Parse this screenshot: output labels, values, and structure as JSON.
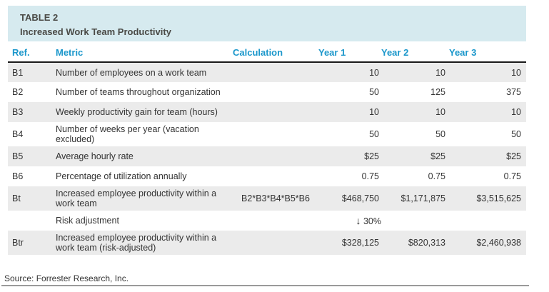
{
  "table": {
    "label": "TABLE 2",
    "title": "Increased Work Team Productivity",
    "columns": {
      "ref": "Ref.",
      "metric": "Metric",
      "calc": "Calculation",
      "y1": "Year 1",
      "y2": "Year 2",
      "y3": "Year 3"
    },
    "rows": [
      {
        "ref": "B1",
        "metric": "Number of employees on a work team",
        "calc": "",
        "y1": "10",
        "y2": "10",
        "y3": "10"
      },
      {
        "ref": "B2",
        "metric": "Number of teams throughout organization",
        "calc": "",
        "y1": "50",
        "y2": "125",
        "y3": "375"
      },
      {
        "ref": "B3",
        "metric": "Weekly productivity gain for team (hours)",
        "calc": "",
        "y1": "10",
        "y2": "10",
        "y3": "10"
      },
      {
        "ref": "B4",
        "metric": "Number of weeks per year (vacation excluded)",
        "calc": "",
        "y1": "50",
        "y2": "50",
        "y3": "50"
      },
      {
        "ref": "B5",
        "metric": "Average hourly rate",
        "calc": "",
        "y1": "$25",
        "y2": "$25",
        "y3": "$25"
      },
      {
        "ref": "B6",
        "metric": "Percentage of utilization annually",
        "calc": "",
        "y1": "0.75",
        "y2": "0.75",
        "y3": "0.75"
      },
      {
        "ref": "Bt",
        "metric": "Increased employee productivity within a work team",
        "calc": "B2*B3*B4*B5*B6",
        "y1": "$468,750",
        "y2": "$1,171,875",
        "y3": "$3,515,625"
      },
      {
        "ref": "",
        "metric": "Risk adjustment",
        "calc": "",
        "y1": "30%",
        "y2": "",
        "y3": "",
        "risk_arrow_icon": "↓"
      },
      {
        "ref": "Btr",
        "metric": "Increased employee productivity within a work team (risk-adjusted)",
        "calc": "",
        "y1": "$328,125",
        "y2": "$820,313",
        "y3": "$2,460,938"
      }
    ]
  },
  "footer": {
    "source": "Source: Forrester Research, Inc."
  },
  "colors": {
    "band_background": "#d6eaef",
    "header_text": "#1b97cb",
    "shaded_row": "#ebebeb",
    "header_rule": "#1a1a1a",
    "footer_rule": "#9a9a9a",
    "body_text": "#333333"
  }
}
